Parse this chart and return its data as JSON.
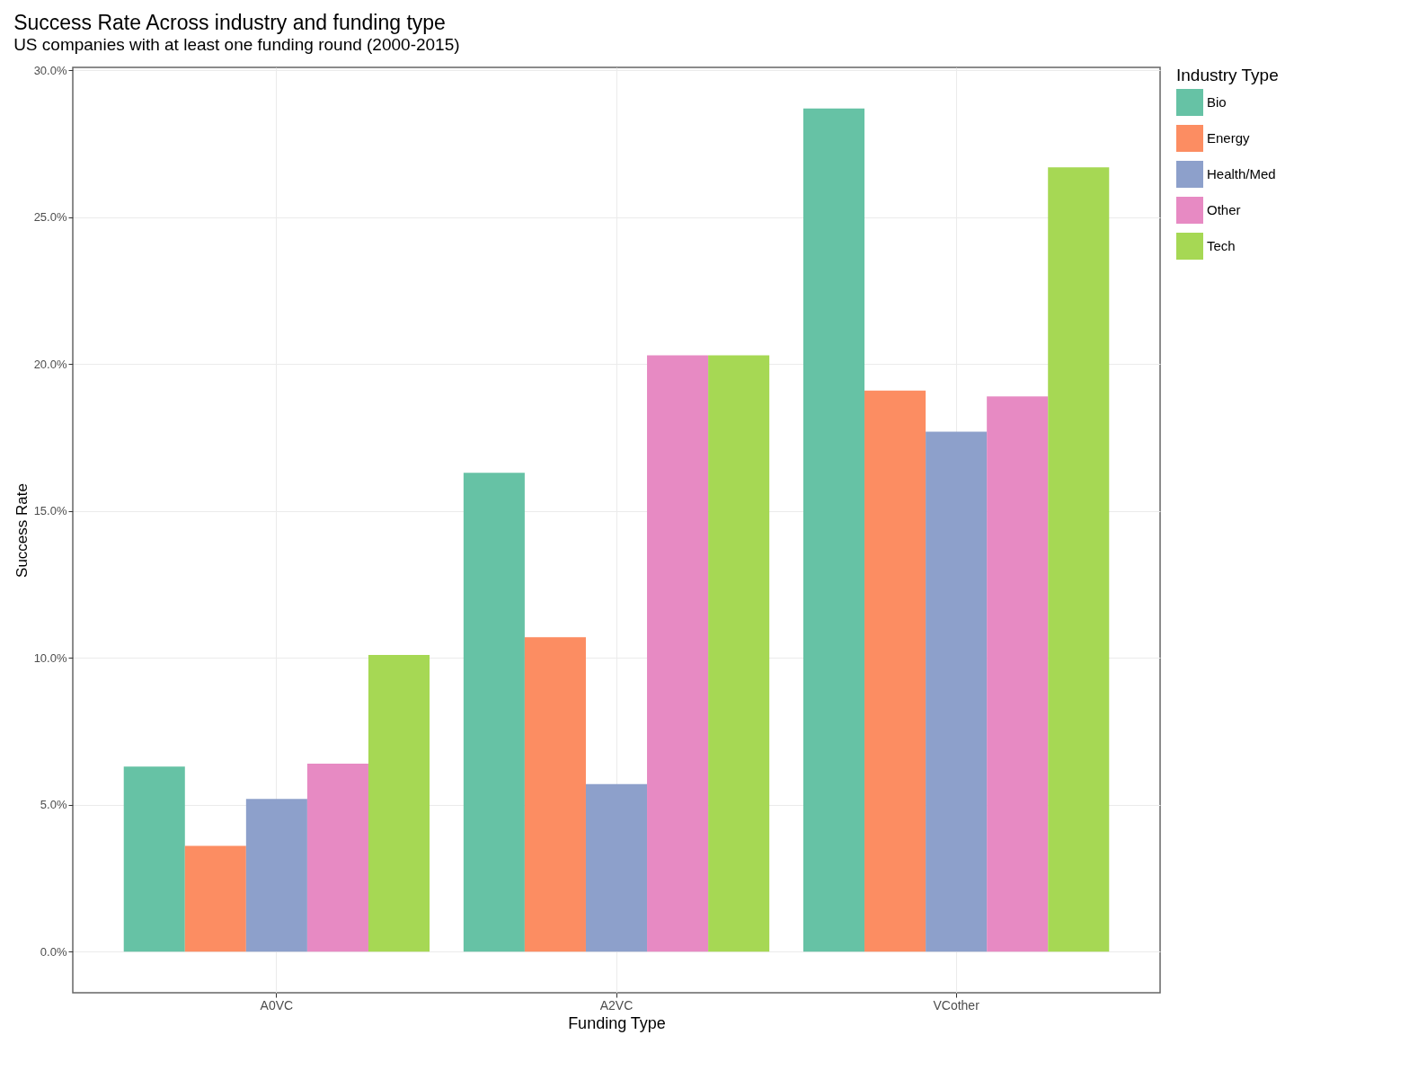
{
  "chart_data": {
    "type": "bar",
    "title": "Success Rate Across industry and funding type",
    "subtitle": "US companies with at least one funding round (2000-2015)",
    "xlabel": "Funding Type",
    "ylabel": "Success Rate",
    "legend_title": "Industry Type",
    "legend": "right",
    "grid": true,
    "categories": [
      "A0VC",
      "A2VC",
      "VCother"
    ],
    "series": [
      {
        "name": "Bio",
        "color": "#66c2a5",
        "values": [
          6.3,
          16.3,
          28.7
        ]
      },
      {
        "name": "Energy",
        "color": "#fc8d62",
        "values": [
          3.6,
          10.7,
          19.1
        ]
      },
      {
        "name": "Health/Med",
        "color": "#8da0cb",
        "values": [
          5.2,
          5.7,
          17.7
        ]
      },
      {
        "name": "Other",
        "color": "#e78ac3",
        "values": [
          6.4,
          20.3,
          18.9
        ]
      },
      {
        "name": "Tech",
        "color": "#a6d854",
        "values": [
          10.1,
          20.3,
          26.7
        ]
      }
    ],
    "ylim": [
      -1.4,
      30.1
    ],
    "yticks": [
      {
        "value": 0,
        "label": "0.0%"
      },
      {
        "value": 5,
        "label": "5.0%"
      },
      {
        "value": 10,
        "label": "10.0%"
      },
      {
        "value": 15,
        "label": "15.0%"
      },
      {
        "value": 20,
        "label": "20.0%"
      },
      {
        "value": 25,
        "label": "25.0%"
      },
      {
        "value": 30,
        "label": "30.0%"
      }
    ]
  }
}
